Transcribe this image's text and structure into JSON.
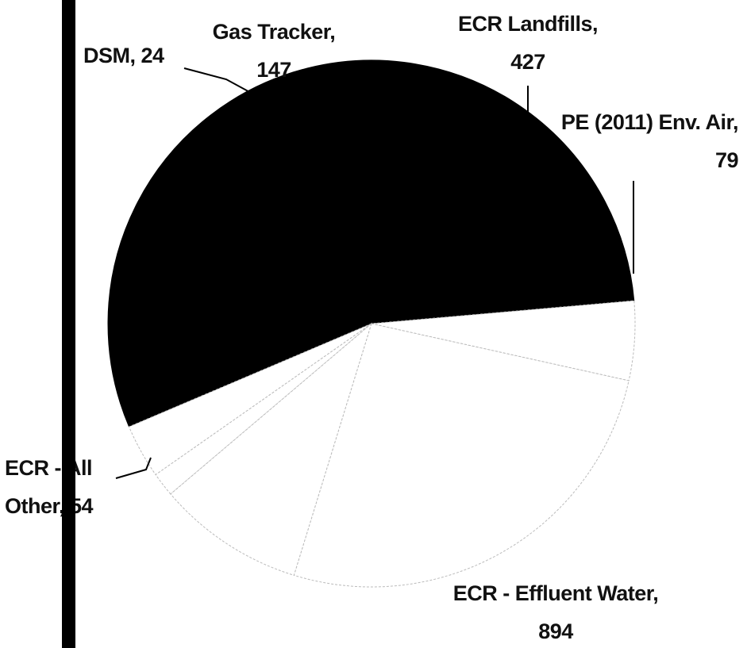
{
  "chart_data": {
    "type": "pie",
    "categories": [
      "ECR - Effluent Water",
      "ECR - All Other",
      "DSM",
      "Gas Tracker",
      "ECR Landfills",
      "PE (2011) Env. Air"
    ],
    "values": [
      894,
      54,
      24,
      147,
      427,
      79
    ],
    "value_labels": [
      "ECR - Effluent Water, 894",
      "ECR - All Other, 54",
      "DSM, 24",
      "Gas Tracker, 147",
      "ECR Landfills, 427",
      "PE (2011) Env. Air, 79"
    ],
    "colors": [
      "#000000",
      "#ffffff",
      "#ffffff",
      "#ffffff",
      "#ffffff",
      "#ffffff"
    ]
  }
}
